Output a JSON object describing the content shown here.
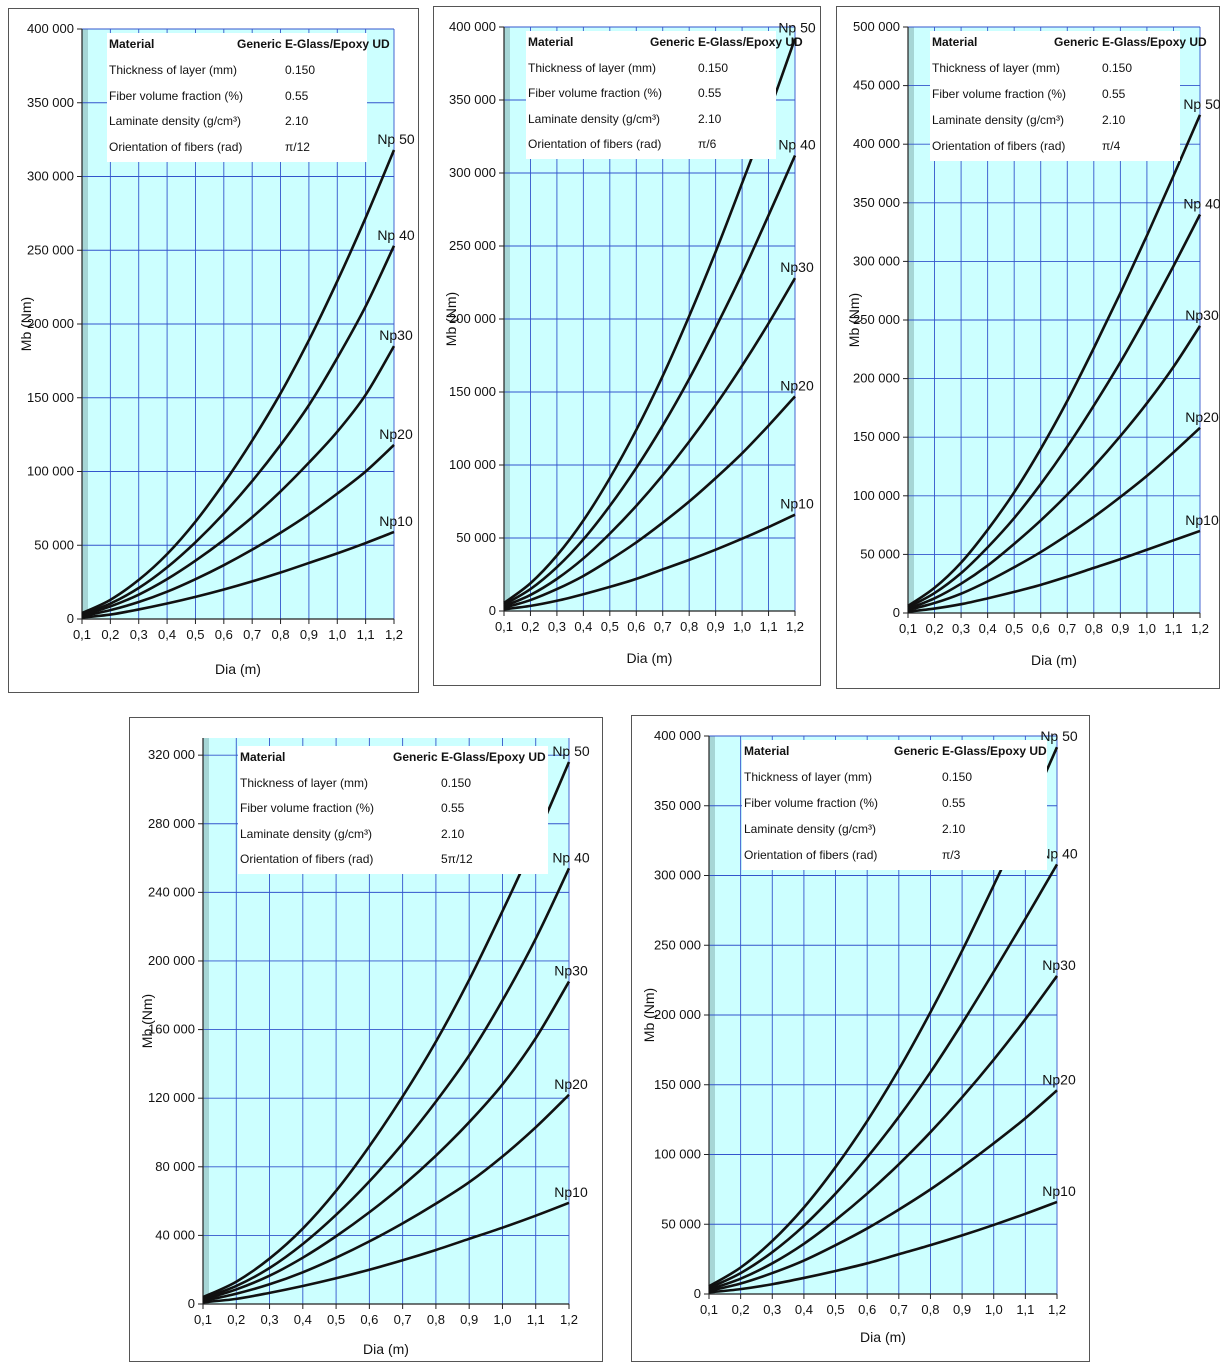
{
  "chart_data": [
    {
      "type": "line",
      "xlabel": "Dia (m)",
      "ylabel": "Mb (Nm)",
      "x": [
        0.1,
        0.2,
        0.3,
        0.4,
        0.5,
        0.6,
        0.7,
        0.8,
        0.9,
        1.0,
        1.1,
        1.2
      ],
      "x_ticks": [
        "0,1",
        "0,2",
        "0,3",
        "0,4",
        "0,5",
        "0,6",
        "0,7",
        "0,8",
        "0,9",
        "1,0",
        "1,1",
        "1,2"
      ],
      "ylim": [
        0,
        400000
      ],
      "y_ticks": [
        "0",
        "50 000",
        "100 000",
        "150 000",
        "200 000",
        "250 000",
        "300 000",
        "350 000",
        "400 000"
      ],
      "grid": true,
      "legend": "labels at line ends",
      "series": [
        {
          "name": "Np10",
          "values": [
            1000,
            3000,
            6500,
            10500,
            15000,
            20000,
            25500,
            31500,
            38000,
            44500,
            51500,
            59000
          ]
        },
        {
          "name": "Np20",
          "values": [
            1800,
            6000,
            11500,
            18500,
            27000,
            36500,
            47000,
            58500,
            71000,
            85000,
            100000,
            118000
          ]
        },
        {
          "name": "Np30",
          "values": [
            2500,
            8500,
            16500,
            27000,
            39500,
            53500,
            69000,
            86500,
            106000,
            127000,
            152000,
            185000
          ]
        },
        {
          "name": "Np 40",
          "values": [
            3200,
            10500,
            21000,
            35000,
            52000,
            71500,
            93500,
            118000,
            145000,
            177000,
            212000,
            253000
          ]
        },
        {
          "name": "Np 50",
          "values": [
            4000,
            13000,
            26500,
            44000,
            66000,
            92000,
            121000,
            153000,
            189000,
            229000,
            272000,
            318000
          ]
        }
      ],
      "info": {
        "rows": [
          {
            "label": "Material",
            "value": "Generic E-Glass/Epoxy UD"
          },
          {
            "label": "Thickness of layer (mm)",
            "value": "0.150"
          },
          {
            "label": "Fiber volume fraction  (%)",
            "value": "0.55"
          },
          {
            "label": "Laminate density  (g/cm³)",
            "value": "2.10"
          },
          {
            "label": "Orientation of fibers (rad)",
            "value": "π/12"
          }
        ]
      }
    },
    {
      "type": "line",
      "xlabel": "Dia (m)",
      "ylabel": "Mb (Nm)",
      "x": [
        0.1,
        0.2,
        0.3,
        0.4,
        0.5,
        0.6,
        0.7,
        0.8,
        0.9,
        1.0,
        1.1,
        1.2
      ],
      "x_ticks": [
        "0,1",
        "0,2",
        "0,3",
        "0,4",
        "0,5",
        "0,6",
        "0,7",
        "0,8",
        "0,9",
        "1,0",
        "1,1",
        "1,2"
      ],
      "ylim": [
        0,
        400000
      ],
      "y_ticks": [
        "0",
        "50 000",
        "100 000",
        "150 000",
        "200 000",
        "250 000",
        "300 000",
        "350 000",
        "400 000"
      ],
      "grid": true,
      "legend": "labels at line ends",
      "series": [
        {
          "name": "Np10",
          "values": [
            1200,
            3500,
            7000,
            11500,
            16500,
            22000,
            28500,
            35000,
            42000,
            49500,
            57500,
            66000
          ]
        },
        {
          "name": "Np20",
          "values": [
            2200,
            7500,
            15000,
            24000,
            35000,
            47000,
            60500,
            75000,
            91000,
            108000,
            127000,
            147000
          ]
        },
        {
          "name": "Np30",
          "values": [
            3200,
            11000,
            22000,
            36000,
            53000,
            72000,
            93000,
            116000,
            141000,
            168000,
            197000,
            228000
          ]
        },
        {
          "name": "Np 40",
          "values": [
            4300,
            15000,
            30000,
            49000,
            72000,
            98000,
            127000,
            159000,
            194000,
            231000,
            271000,
            312000
          ]
        },
        {
          "name": "Np 50",
          "values": [
            5500,
            19000,
            38000,
            62000,
            91000,
            124000,
            161000,
            202000,
            246000,
            293000,
            341000,
            392000
          ]
        }
      ],
      "info": {
        "rows": [
          {
            "label": "Material",
            "value": "Generic E-Glass/Epoxy UD"
          },
          {
            "label": "Thickness of layer (mm)",
            "value": "0.150"
          },
          {
            "label": "Fiber volume fraction  (%)",
            "value": "0.55"
          },
          {
            "label": "Laminate density  (g/cm³)",
            "value": "2.10"
          },
          {
            "label": "Orientation of fibers (rad)",
            "value": "π/6"
          }
        ]
      }
    },
    {
      "type": "line",
      "xlabel": "Dia (m)",
      "ylabel": "Mb (Nm)",
      "x": [
        0.1,
        0.2,
        0.3,
        0.4,
        0.5,
        0.6,
        0.7,
        0.8,
        0.9,
        1.0,
        1.1,
        1.2
      ],
      "x_ticks": [
        "0,1",
        "0,2",
        "0,3",
        "0,4",
        "0,5",
        "0,6",
        "0,7",
        "0,8",
        "0,9",
        "1,0",
        "1,1",
        "1,2"
      ],
      "ylim": [
        0,
        500000
      ],
      "y_ticks": [
        "0",
        "50 000",
        "100 000",
        "150 000",
        "200 000",
        "250 000",
        "300 000",
        "350 000",
        "400 000",
        "450 000",
        "500 000"
      ],
      "grid": true,
      "legend": "labels at line ends",
      "series": [
        {
          "name": "Np10",
          "values": [
            1200,
            3800,
            7500,
            12500,
            18000,
            24000,
            31000,
            38500,
            46000,
            54000,
            62000,
            70000
          ]
        },
        {
          "name": "Np20",
          "values": [
            2500,
            8500,
            16500,
            27000,
            39000,
            52000,
            66500,
            82000,
            99000,
            117000,
            137000,
            158000
          ]
        },
        {
          "name": "Np30",
          "values": [
            3500,
            12500,
            25000,
            40500,
            59000,
            79000,
            101000,
            125000,
            151000,
            179000,
            210000,
            245000
          ]
        },
        {
          "name": "Np 40",
          "values": [
            4800,
            17000,
            34000,
            56000,
            81000,
            110000,
            142000,
            177000,
            214000,
            254000,
            296000,
            340000
          ]
        },
        {
          "name": "Np 50",
          "values": [
            6000,
            21500,
            43000,
            71000,
            103000,
            140000,
            181000,
            226000,
            273000,
            322000,
            373000,
            425000
          ]
        }
      ],
      "info": {
        "rows": [
          {
            "label": "Material",
            "value": "Generic E-Glass/Epoxy UD"
          },
          {
            "label": "Thickness of layer (mm)",
            "value": "0.150"
          },
          {
            "label": "Fiber volume fraction  (%)",
            "value": "0.55"
          },
          {
            "label": "Laminate density  (g/cm³)",
            "value": "2.10"
          },
          {
            "label": "Orientation of fibers (rad)",
            "value": "π/4"
          }
        ]
      }
    },
    {
      "type": "line",
      "xlabel": "Dia (m)",
      "ylabel": "Mb (Nm)",
      "x": [
        0.1,
        0.2,
        0.3,
        0.4,
        0.5,
        0.6,
        0.7,
        0.8,
        0.9,
        1.0,
        1.1,
        1.2
      ],
      "x_ticks": [
        "0,1",
        "0,2",
        "0,3",
        "0,4",
        "0,5",
        "0,6",
        "0,7",
        "0,8",
        "0,9",
        "1,0",
        "1,1",
        "1,2"
      ],
      "ylim": [
        0,
        330000
      ],
      "y_ticks": [
        "0",
        "40 000",
        "80 000",
        "120 000",
        "160 000",
        "200 000",
        "240 000",
        "280 000",
        "320 000"
      ],
      "grid": true,
      "legend": "labels at line ends",
      "series": [
        {
          "name": "Np10",
          "values": [
            1000,
            3000,
            6500,
            10500,
            15000,
            20000,
            25500,
            31500,
            38000,
            44500,
            51500,
            59000
          ]
        },
        {
          "name": "Np20",
          "values": [
            1800,
            6000,
            11500,
            18500,
            27000,
            36500,
            47000,
            58500,
            71000,
            86000,
            103000,
            122000
          ]
        },
        {
          "name": "Np30",
          "values": [
            2500,
            8500,
            16500,
            27000,
            39500,
            53500,
            69000,
            86500,
            106000,
            128000,
            155000,
            188000
          ]
        },
        {
          "name": "Np 40",
          "values": [
            3200,
            10500,
            21000,
            35000,
            52000,
            71500,
            93500,
            118000,
            145000,
            177000,
            213000,
            254000
          ]
        },
        {
          "name": "Np 50",
          "values": [
            4000,
            13000,
            26500,
            44000,
            66000,
            92000,
            121000,
            153000,
            189000,
            229000,
            271000,
            316000
          ]
        }
      ],
      "info": {
        "rows": [
          {
            "label": "Material",
            "value": "Generic E-Glass/Epoxy UD"
          },
          {
            "label": "Thickness of layer (mm)",
            "value": "0.150"
          },
          {
            "label": "Fiber volume fraction  (%)",
            "value": "0.55"
          },
          {
            "label": "Laminate density  (g/cm³)",
            "value": "2.10"
          },
          {
            "label": "Orientation of fibers (rad)",
            "value": "5π/12"
          }
        ]
      }
    },
    {
      "type": "line",
      "xlabel": "Dia (m)",
      "ylabel": "Mb (Nm)",
      "x": [
        0.1,
        0.2,
        0.3,
        0.4,
        0.5,
        0.6,
        0.7,
        0.8,
        0.9,
        1.0,
        1.1,
        1.2
      ],
      "x_ticks": [
        "0,1",
        "0,2",
        "0,3",
        "0,4",
        "0,5",
        "0,6",
        "0,7",
        "0,8",
        "0,9",
        "1,0",
        "1,1",
        "1,2"
      ],
      "ylim": [
        0,
        400000
      ],
      "y_ticks": [
        "0",
        "50 000",
        "100 000",
        "150 000",
        "200 000",
        "250 000",
        "300 000",
        "350 000",
        "400 000"
      ],
      "grid": true,
      "legend": "labels at line ends",
      "series": [
        {
          "name": "Np10",
          "values": [
            1200,
            3500,
            7000,
            11500,
            16500,
            22000,
            28500,
            35000,
            42000,
            49500,
            57500,
            66000
          ]
        },
        {
          "name": "Np20",
          "values": [
            2200,
            7500,
            15000,
            24000,
            35000,
            47000,
            60500,
            75000,
            91000,
            108000,
            126000,
            146000
          ]
        },
        {
          "name": "Np30",
          "values": [
            3200,
            11000,
            22000,
            36000,
            53000,
            72000,
            93000,
            116000,
            141000,
            168000,
            197000,
            228000
          ]
        },
        {
          "name": "Np 40",
          "values": [
            4300,
            15000,
            30000,
            49000,
            72000,
            98000,
            127000,
            159000,
            194000,
            231000,
            269000,
            308000
          ]
        },
        {
          "name": "Np 50",
          "values": [
            5500,
            19000,
            38000,
            62000,
            91000,
            124000,
            161000,
            202000,
            246000,
            293000,
            341000,
            392000
          ]
        }
      ],
      "info": {
        "rows": [
          {
            "label": "Material",
            "value": "Generic E-Glass/Epoxy UD"
          },
          {
            "label": "Thickness of layer (mm)",
            "value": "0.150"
          },
          {
            "label": "Fiber volume fraction  (%)",
            "value": "0.55"
          },
          {
            "label": "Laminate density  (g/cm³)",
            "value": "2.10"
          },
          {
            "label": "Orientation of fibers (rad)",
            "value": "π/3"
          }
        ]
      }
    }
  ],
  "colors": {
    "plot_bg": "#ccffff",
    "grid": "#3355cc",
    "line": "#111111",
    "left_band": "#a6d6d6"
  }
}
